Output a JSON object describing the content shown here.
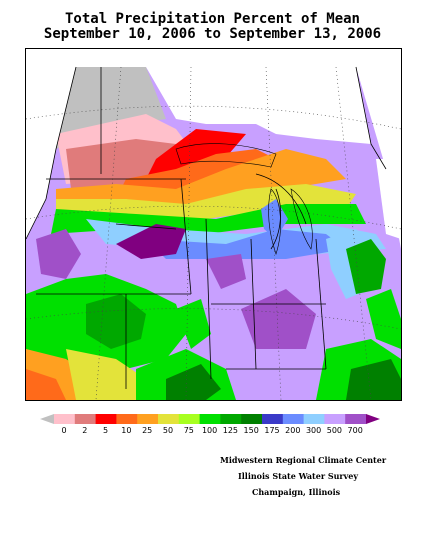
{
  "title": {
    "line1": "Total Precipitation Percent of Mean",
    "line2": "September 10, 2006 to September 13, 2006"
  },
  "legend": {
    "labels": [
      "0",
      "2",
      "5",
      "10",
      "25",
      "50",
      "75",
      "100",
      "125",
      "150",
      "175",
      "200",
      "300",
      "500",
      "700"
    ],
    "colors": [
      "#c0c0c0",
      "#ffc0cb",
      "#e07b7b",
      "#ff0000",
      "#ff6a1a",
      "#ffa020",
      "#e3e33a",
      "#a8ff20",
      "#00e000",
      "#00a800",
      "#008000",
      "#3a3ac8",
      "#6b8cff",
      "#8fcfff",
      "#c8a0ff",
      "#a050c8",
      "#800080"
    ]
  },
  "credits": {
    "line1": "Midwestern Regional Climate Center",
    "line2": "Illinois State Water Survey",
    "line3": "Champaign, Illinois"
  }
}
